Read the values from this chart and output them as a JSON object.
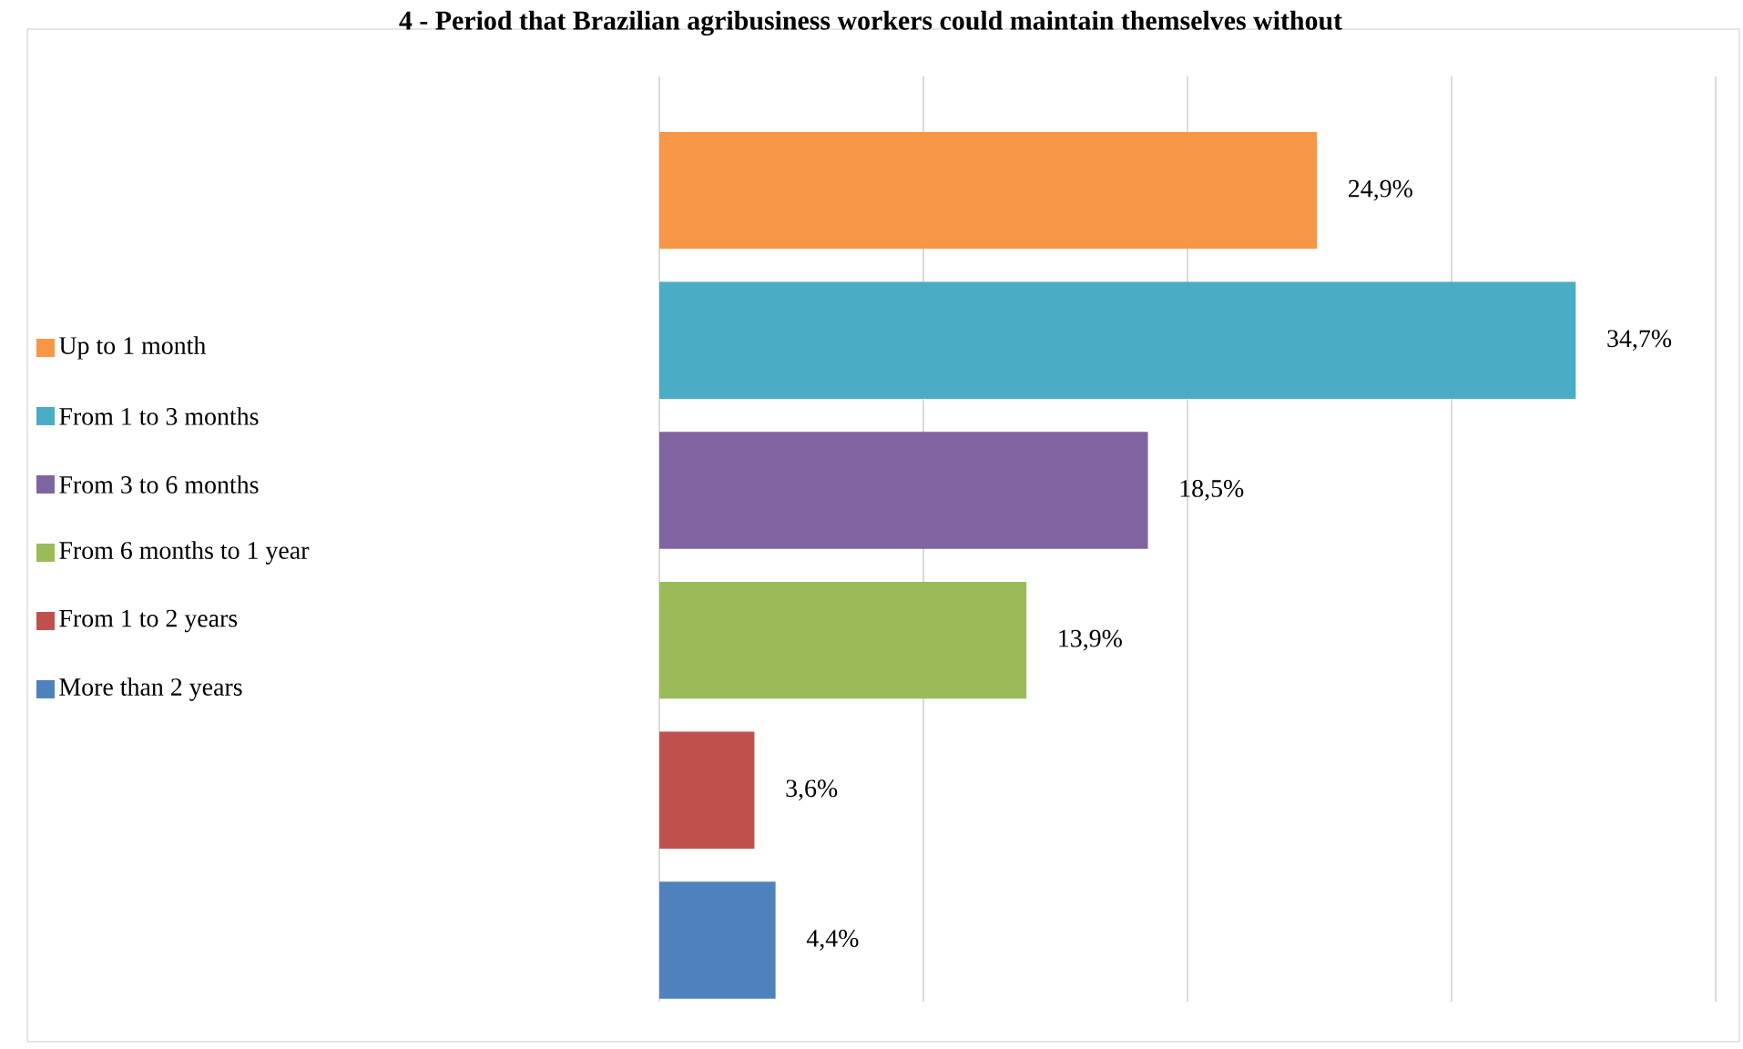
{
  "chart_data": {
    "type": "bar",
    "orientation": "horizontal",
    "title": "4 - Period that Brazilian agribusiness workers could maintain themselves without",
    "categories": [
      null,
      null,
      null,
      null,
      null,
      null
    ],
    "series": [
      {
        "name": "Up to 1 month",
        "color": "#f79646",
        "values": [
          24.9,
          null,
          null,
          null,
          null,
          null
        ],
        "value_labels": [
          "24,9%",
          null,
          null,
          null,
          null,
          null
        ]
      },
      {
        "name": "From 1 to 3 months",
        "color": "#4bacc6",
        "values": [
          null,
          34.7,
          null,
          null,
          null,
          null
        ],
        "value_labels": [
          null,
          "34,7%",
          null,
          null,
          null,
          null
        ]
      },
      {
        "name": "From 3 to 6 months",
        "color": "#8064a2",
        "values": [
          null,
          null,
          18.5,
          null,
          null,
          null
        ],
        "value_labels": [
          null,
          null,
          "18,5%",
          null,
          null,
          null
        ]
      },
      {
        "name": "From 6 months to 1 year",
        "color": "#9bbb59",
        "values": [
          null,
          null,
          null,
          13.9,
          null,
          null
        ],
        "value_labels": [
          null,
          null,
          null,
          "13,9%",
          null,
          null
        ]
      },
      {
        "name": "From 1 to 2 years",
        "color": "#c0504d",
        "values": [
          null,
          null,
          null,
          null,
          3.6,
          null
        ],
        "value_labels": [
          null,
          null,
          null,
          null,
          "3,6%",
          null
        ]
      },
      {
        "name": "More than 2 years",
        "color": "#4f81bd",
        "values": [
          null,
          null,
          null,
          null,
          null,
          4.4
        ],
        "value_labels": [
          null,
          null,
          null,
          null,
          null,
          "4,4%"
        ]
      }
    ],
    "xlim": [
      0,
      40
    ],
    "xticks": [
      {
        "value": 0,
        "label": null
      },
      {
        "value": 10,
        "label": null
      },
      {
        "value": 20,
        "label": null
      },
      {
        "value": 30,
        "label": null
      },
      {
        "value": 40,
        "label": null
      }
    ],
    "stacked": true,
    "grid": "x",
    "legend": "left"
  }
}
